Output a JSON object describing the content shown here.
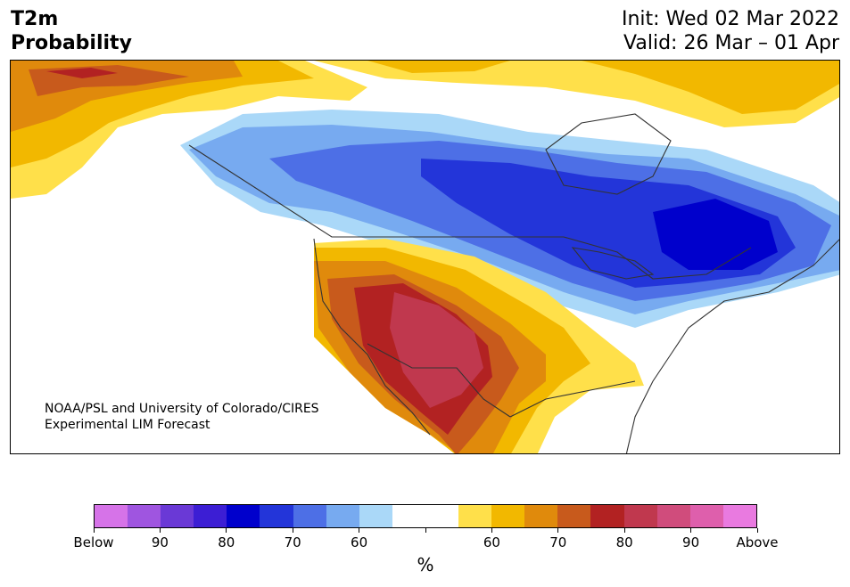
{
  "header": {
    "left_line1": "T2m",
    "left_line2": "Probability",
    "right_line1": "Init: Wed 02 Mar 2022",
    "right_line2": "Valid: 26 Mar – 01 Apr"
  },
  "credit": {
    "line1": "NOAA/PSL and University of Colorado/CIRES",
    "line2": "Experimental LIM Forecast"
  },
  "colorbar": {
    "colors": [
      "#d673e8",
      "#9f55e0",
      "#6a39d6",
      "#3c1ed4",
      "#0000cc",
      "#2335d9",
      "#4d6fe6",
      "#77aaf0",
      "#aad8f8",
      "#ffffff",
      "#ffffff",
      "#ffe04a",
      "#f2b800",
      "#e08a0c",
      "#c85a1c",
      "#b22222",
      "#c0384e",
      "#d04c7c",
      "#de5fac",
      "#e97ae0"
    ],
    "tick_labels": [
      "Below",
      "90",
      "80",
      "70",
      "60",
      "",
      "60",
      "70",
      "80",
      "90",
      "Above"
    ],
    "unit": "%"
  },
  "map": {
    "palette": {
      "below_80_90": "#0000cc",
      "below_70_80": "#2335d9",
      "below_65_70": "#4d6fe6",
      "below_60_65": "#77aaf0",
      "below_55_60": "#aad8f8",
      "above_55_60": "#ffe04a",
      "above_60_65": "#f2b800",
      "above_65_70": "#e08a0c",
      "above_70_75": "#c85a1c",
      "above_75_80": "#b22222",
      "above_80_85": "#c0384e",
      "boundary": "#333333"
    }
  }
}
